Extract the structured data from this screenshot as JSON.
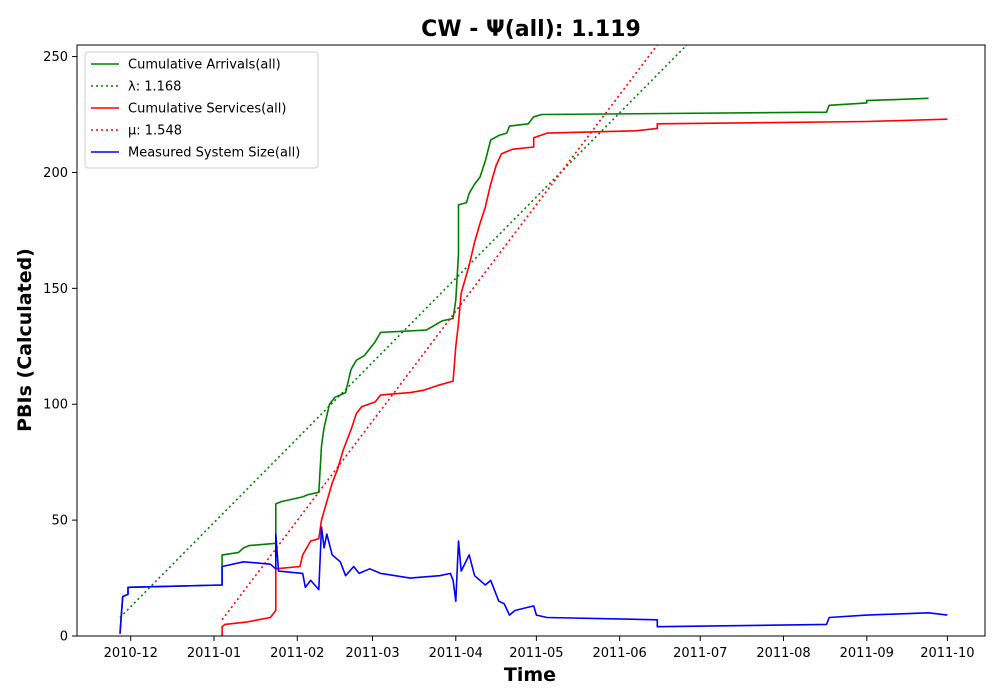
{
  "chart_data": {
    "type": "line",
    "title": "CW -  Ψ(all): 1.119",
    "xlabel": "Time",
    "ylabel": "PBIs (Calculated)",
    "xlim": [
      "2010-11-11",
      "2011-10-15"
    ],
    "ylim": [
      0,
      255
    ],
    "x_ticks": [
      "2010-12",
      "2011-01",
      "2011-02",
      "2011-03",
      "2011-04",
      "2011-05",
      "2011-06",
      "2011-07",
      "2011-08",
      "2011-09",
      "2011-10"
    ],
    "y_ticks": [
      0,
      50,
      100,
      150,
      200,
      250
    ],
    "grid": false,
    "legend_position": "top-left",
    "series": [
      {
        "name": "Cumulative Arrivals(all)",
        "color": "#008000",
        "style": "solid",
        "points": [
          [
            "2010-11-27",
            1
          ],
          [
            "2010-11-28",
            17
          ],
          [
            "2010-11-30",
            18
          ],
          [
            "2010-11-30",
            21
          ],
          [
            "2011-01-04",
            22
          ],
          [
            "2011-01-04",
            35
          ],
          [
            "2011-01-10",
            36
          ],
          [
            "2011-01-12",
            38
          ],
          [
            "2011-01-14",
            39
          ],
          [
            "2011-01-24",
            40
          ],
          [
            "2011-01-24",
            57
          ],
          [
            "2011-01-26",
            58
          ],
          [
            "2011-02-03",
            60
          ],
          [
            "2011-02-05",
            61
          ],
          [
            "2011-02-09",
            62
          ],
          [
            "2011-02-10",
            82
          ],
          [
            "2011-02-11",
            90
          ],
          [
            "2011-02-13",
            100
          ],
          [
            "2011-02-15",
            103
          ],
          [
            "2011-02-19",
            105
          ],
          [
            "2011-02-21",
            115
          ],
          [
            "2011-02-23",
            119
          ],
          [
            "2011-02-26",
            121
          ],
          [
            "2011-02-28",
            124
          ],
          [
            "2011-03-02",
            127
          ],
          [
            "2011-03-04",
            131
          ],
          [
            "2011-03-21",
            132
          ],
          [
            "2011-03-24",
            134
          ],
          [
            "2011-03-27",
            136
          ],
          [
            "2011-03-31",
            137
          ],
          [
            "2011-04-01",
            145
          ],
          [
            "2011-04-02",
            165
          ],
          [
            "2011-04-02",
            186
          ],
          [
            "2011-04-05",
            187
          ],
          [
            "2011-04-06",
            191
          ],
          [
            "2011-04-08",
            195
          ],
          [
            "2011-04-10",
            198
          ],
          [
            "2011-04-12",
            205
          ],
          [
            "2011-04-14",
            214
          ],
          [
            "2011-04-17",
            216
          ],
          [
            "2011-04-20",
            217
          ],
          [
            "2011-04-21",
            220
          ],
          [
            "2011-04-28",
            221
          ],
          [
            "2011-04-30",
            224
          ],
          [
            "2011-05-03",
            225
          ],
          [
            "2011-08-17",
            226
          ],
          [
            "2011-08-18",
            229
          ],
          [
            "2011-09-01",
            230
          ],
          [
            "2011-09-01",
            231
          ],
          [
            "2011-09-24",
            232
          ]
        ]
      },
      {
        "name": "λ: 1.168",
        "color": "#008000",
        "style": "dotted",
        "points": [
          [
            "2010-11-27",
            8
          ],
          [
            "2011-06-26",
            255
          ]
        ]
      },
      {
        "name": "Cumulative Services(all)",
        "color": "#ff0000",
        "style": "solid",
        "points": [
          [
            "2011-01-04",
            0
          ],
          [
            "2011-01-04",
            4
          ],
          [
            "2011-01-05",
            5
          ],
          [
            "2011-01-13",
            6
          ],
          [
            "2011-01-22",
            8
          ],
          [
            "2011-01-24",
            11
          ],
          [
            "2011-01-24",
            29
          ],
          [
            "2011-02-02",
            30
          ],
          [
            "2011-02-03",
            35
          ],
          [
            "2011-02-06",
            41
          ],
          [
            "2011-02-09",
            42
          ],
          [
            "2011-02-10",
            50
          ],
          [
            "2011-02-12",
            58
          ],
          [
            "2011-02-14",
            66
          ],
          [
            "2011-02-16",
            72
          ],
          [
            "2011-02-18",
            80
          ],
          [
            "2011-02-21",
            89
          ],
          [
            "2011-02-23",
            96
          ],
          [
            "2011-02-25",
            99
          ],
          [
            "2011-03-02",
            101
          ],
          [
            "2011-03-04",
            104
          ],
          [
            "2011-03-15",
            105
          ],
          [
            "2011-03-20",
            106
          ],
          [
            "2011-03-25",
            108
          ],
          [
            "2011-03-31",
            110
          ],
          [
            "2011-04-01",
            125
          ],
          [
            "2011-04-02",
            135
          ],
          [
            "2011-04-03",
            148
          ],
          [
            "2011-04-06",
            160
          ],
          [
            "2011-04-08",
            170
          ],
          [
            "2011-04-10",
            178
          ],
          [
            "2011-04-12",
            185
          ],
          [
            "2011-04-14",
            195
          ],
          [
            "2011-04-16",
            203
          ],
          [
            "2011-04-18",
            208
          ],
          [
            "2011-04-22",
            210
          ],
          [
            "2011-04-30",
            211
          ],
          [
            "2011-04-30",
            215
          ],
          [
            "2011-05-05",
            217
          ],
          [
            "2011-06-07",
            218
          ],
          [
            "2011-06-15",
            219
          ],
          [
            "2011-06-15",
            221
          ],
          [
            "2011-09-01",
            222
          ],
          [
            "2011-10-01",
            223
          ]
        ]
      },
      {
        "name": "μ: 1.548",
        "color": "#ff0000",
        "style": "dotted",
        "points": [
          [
            "2011-01-04",
            7
          ],
          [
            "2011-06-15",
            255
          ]
        ]
      },
      {
        "name": "Measured System Size(all)",
        "color": "#0000ff",
        "style": "solid",
        "points": [
          [
            "2010-11-27",
            1
          ],
          [
            "2010-11-28",
            17
          ],
          [
            "2010-11-30",
            18
          ],
          [
            "2010-11-30",
            21
          ],
          [
            "2011-01-04",
            22
          ],
          [
            "2011-01-04",
            30
          ],
          [
            "2011-01-12",
            32
          ],
          [
            "2011-01-22",
            31
          ],
          [
            "2011-01-24",
            29
          ],
          [
            "2011-01-24",
            44
          ],
          [
            "2011-01-25",
            28
          ],
          [
            "2011-02-03",
            27
          ],
          [
            "2011-02-04",
            21
          ],
          [
            "2011-02-06",
            24
          ],
          [
            "2011-02-09",
            20
          ],
          [
            "2011-02-10",
            47
          ],
          [
            "2011-02-11",
            38
          ],
          [
            "2011-02-12",
            44
          ],
          [
            "2011-02-14",
            35
          ],
          [
            "2011-02-17",
            32
          ],
          [
            "2011-02-19",
            26
          ],
          [
            "2011-02-22",
            30
          ],
          [
            "2011-02-24",
            27
          ],
          [
            "2011-02-28",
            29
          ],
          [
            "2011-03-04",
            27
          ],
          [
            "2011-03-15",
            25
          ],
          [
            "2011-03-26",
            26
          ],
          [
            "2011-03-30",
            27
          ],
          [
            "2011-03-31",
            24
          ],
          [
            "2011-04-01",
            15
          ],
          [
            "2011-04-02",
            41
          ],
          [
            "2011-04-03",
            28
          ],
          [
            "2011-04-06",
            35
          ],
          [
            "2011-04-08",
            26
          ],
          [
            "2011-04-12",
            22
          ],
          [
            "2011-04-14",
            24
          ],
          [
            "2011-04-17",
            15
          ],
          [
            "2011-04-19",
            14
          ],
          [
            "2011-04-21",
            9
          ],
          [
            "2011-04-23",
            11
          ],
          [
            "2011-04-30",
            13
          ],
          [
            "2011-05-01",
            9
          ],
          [
            "2011-05-05",
            8
          ],
          [
            "2011-06-15",
            7
          ],
          [
            "2011-06-15",
            4
          ],
          [
            "2011-08-17",
            5
          ],
          [
            "2011-08-18",
            8
          ],
          [
            "2011-09-01",
            9
          ],
          [
            "2011-09-24",
            10
          ],
          [
            "2011-10-01",
            9
          ]
        ]
      }
    ]
  }
}
